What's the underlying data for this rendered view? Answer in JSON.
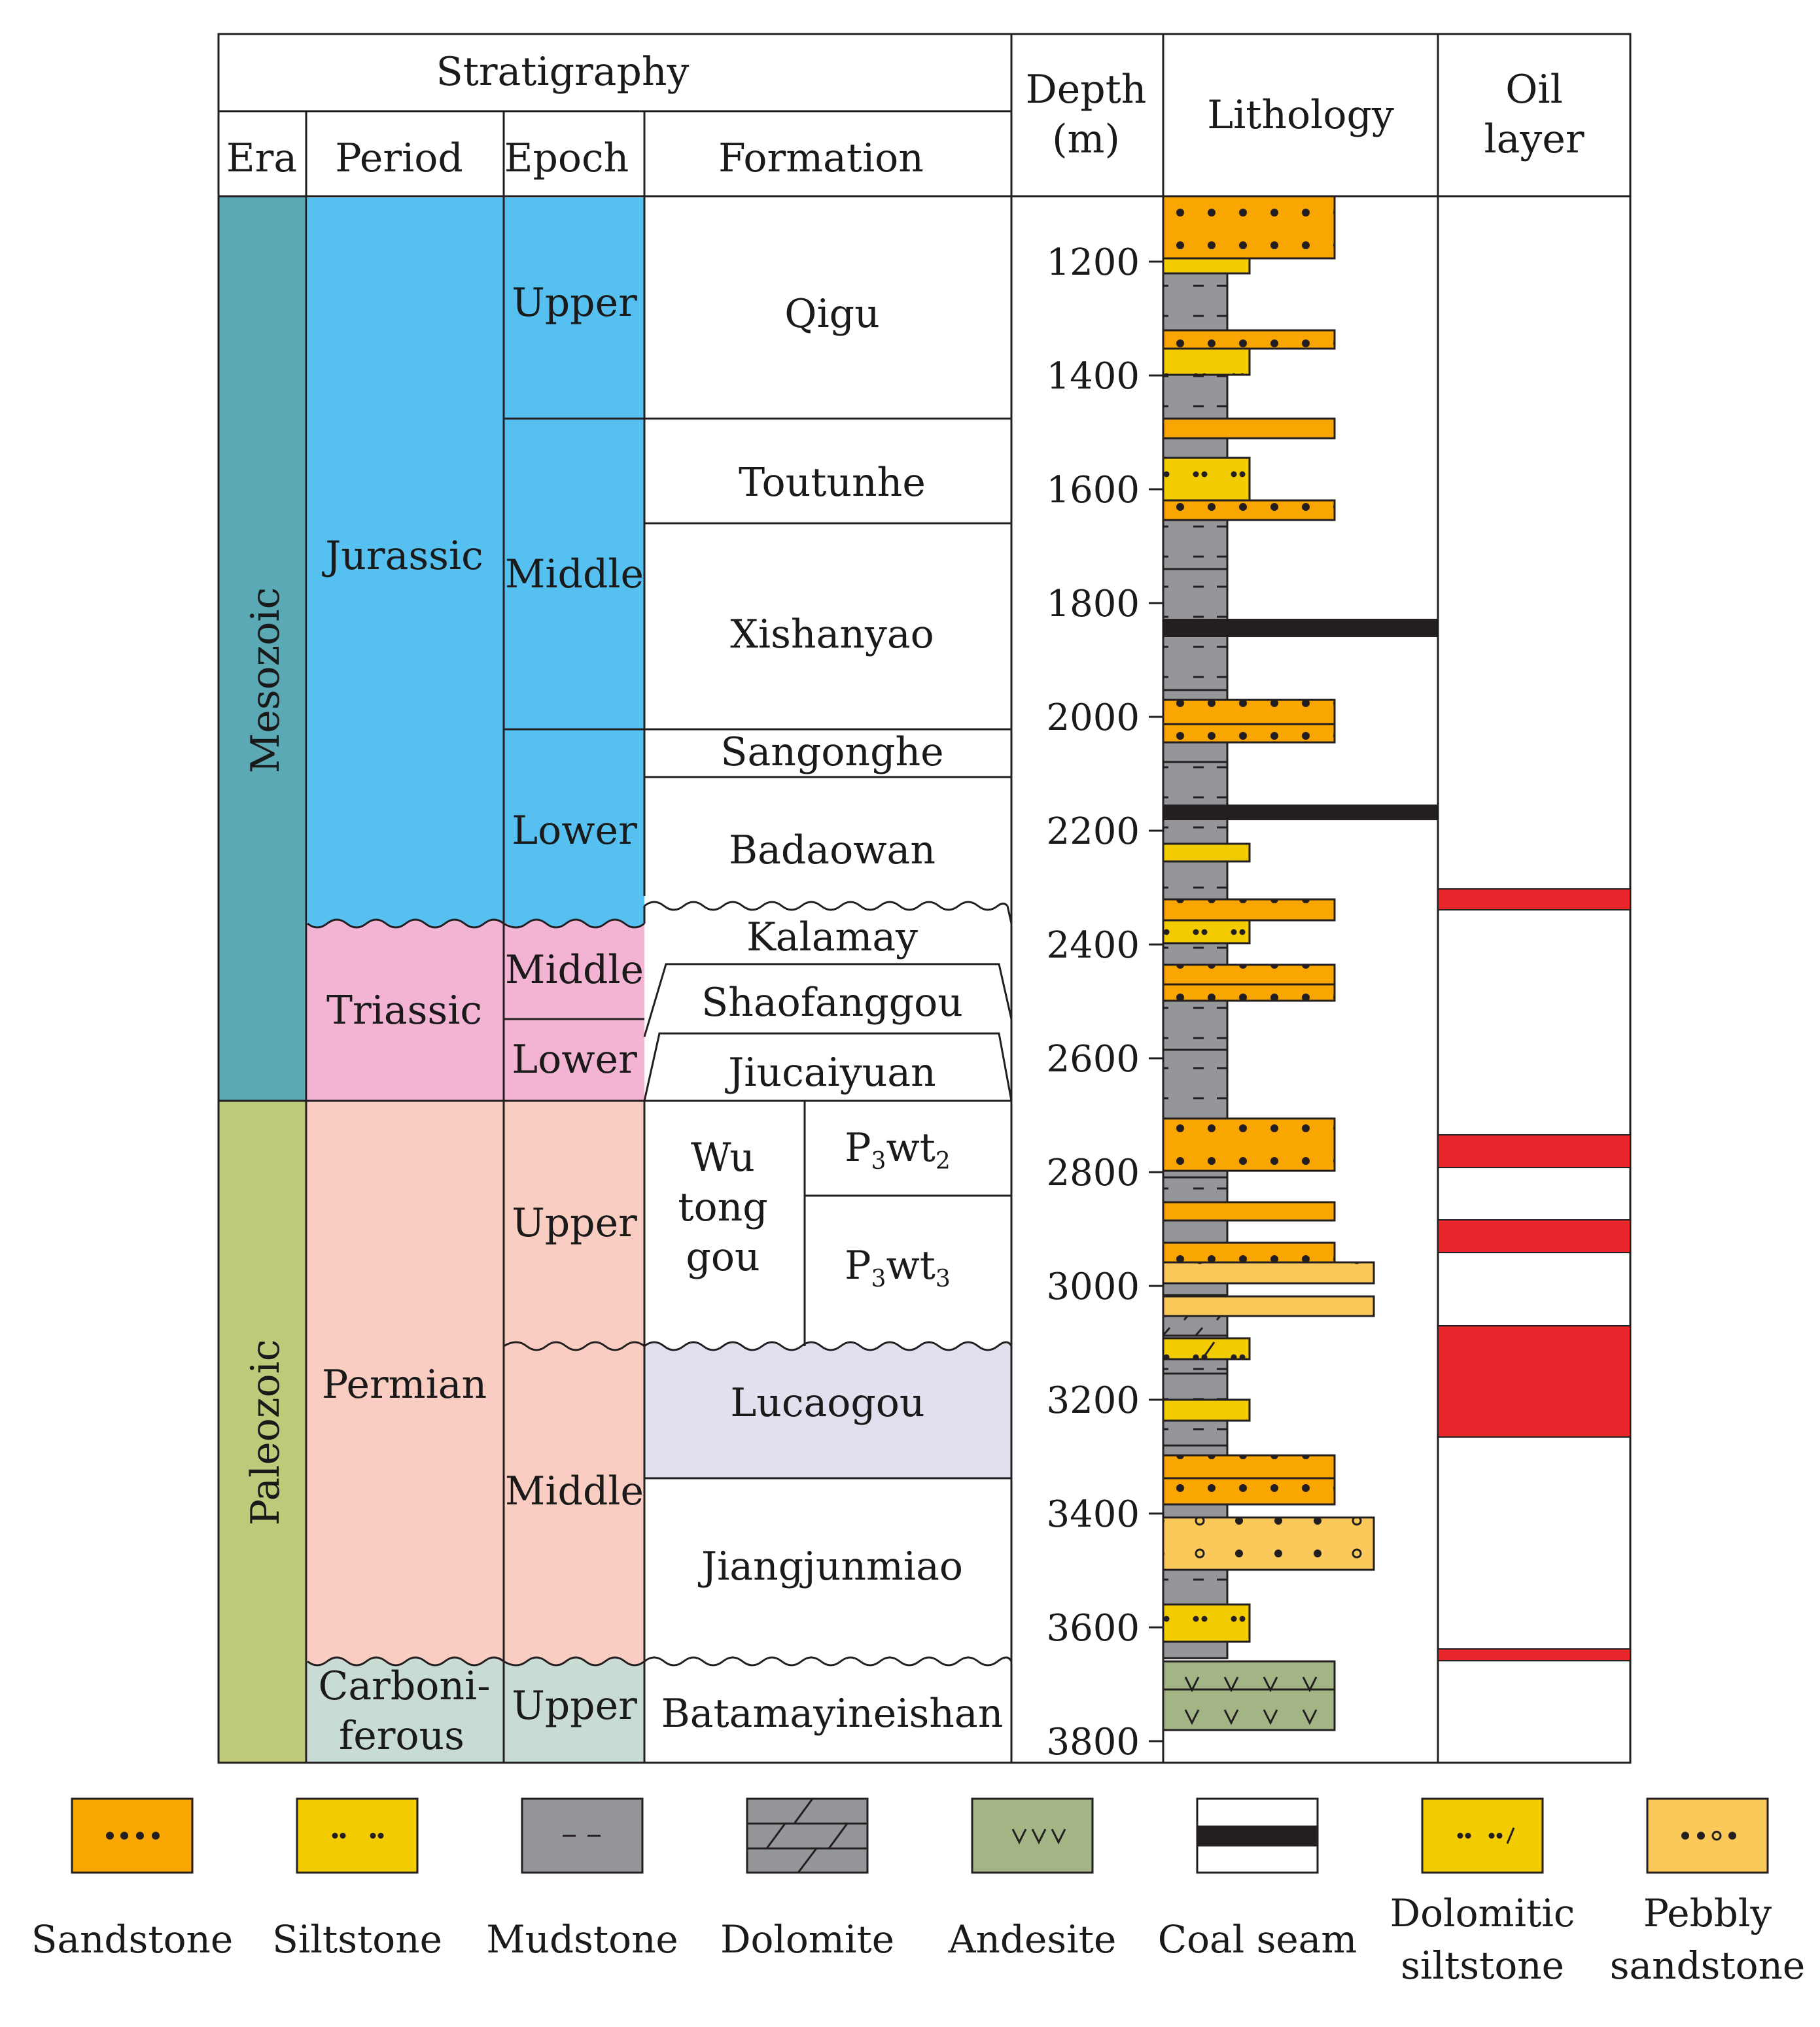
{
  "headers": {
    "stratigraphy": "Stratigraphy",
    "era": "Era",
    "period": "Period",
    "epoch": "Epoch",
    "formation": "Formation",
    "depth_line1": "Depth",
    "depth_line2": "(m)",
    "lithology": "Lithology",
    "oil_line1": "Oil",
    "oil_line2": "layer"
  },
  "eras": [
    {
      "name": "Mesozoic",
      "color": "#5ba9b5"
    },
    {
      "name": "Paleozoic",
      "color": "#bec97a"
    }
  ],
  "periods": [
    {
      "name": "Jurassic",
      "color": "#56c1f0"
    },
    {
      "name": "Triassic",
      "color": "#f3b3d3"
    },
    {
      "name": "Permian",
      "color": "#f9cdc1"
    },
    {
      "name_line1": "Carboni-",
      "name_line2": "ferous",
      "color": "#c8dcd4"
    }
  ],
  "epochs": [
    "Upper",
    "Middle",
    "Lower",
    "Middle",
    "Lower",
    "Upper",
    "Middle",
    "Upper"
  ],
  "formations": [
    "Qigu",
    "Toutunhe",
    "Xishanyao",
    "Sangonghe",
    "Badaowan",
    "Kalamay",
    "Shaofanggou",
    "Jiucaiyuan",
    "Lucaogou",
    "Jiangjunmiao",
    "Batamayineishan"
  ],
  "wutonggou": {
    "line1": "Wu",
    "line2": "tong",
    "line3": "gou",
    "member1": {
      "base": "P",
      "sub1": "3",
      "mid": "wt",
      "sub2": "2"
    },
    "member2": {
      "base": "P",
      "sub1": "3",
      "mid": "wt",
      "sub2": "3"
    }
  },
  "depth_ticks": [
    "1200",
    "1400",
    "1600",
    "1800",
    "2000",
    "2200",
    "2400",
    "2600",
    "2800",
    "3000",
    "3200",
    "3400",
    "3600",
    "3800"
  ],
  "legend": [
    {
      "label": "Sandstone",
      "icon": "sandstone-swatch"
    },
    {
      "label": "Siltstone",
      "icon": "siltstone-swatch"
    },
    {
      "label": "Mudstone",
      "icon": "mudstone-swatch"
    },
    {
      "label": "Dolomite",
      "icon": "dolomite-swatch"
    },
    {
      "label": "Andesite",
      "icon": "andesite-swatch"
    },
    {
      "label": "Coal seam",
      "icon": "coal-seam-swatch"
    },
    {
      "label_line1": "Dolomitic",
      "label_line2": "siltstone",
      "icon": "dolomitic-siltstone-swatch"
    },
    {
      "label_line1": "Pebbly",
      "label_line2": "sandstone",
      "icon": "pebbly-sandstone-swatch"
    }
  ],
  "colors": {
    "sandstone": "#f9a600",
    "siltstone": "#f2cb00",
    "mudstone": "#95969a",
    "dolomite": "#95969a",
    "andesite": "#a3b585",
    "coal": "#231f20",
    "pebbly": "#fbc95a",
    "oil": "#e8262b",
    "lucaogou": "#e1e0ee"
  }
}
